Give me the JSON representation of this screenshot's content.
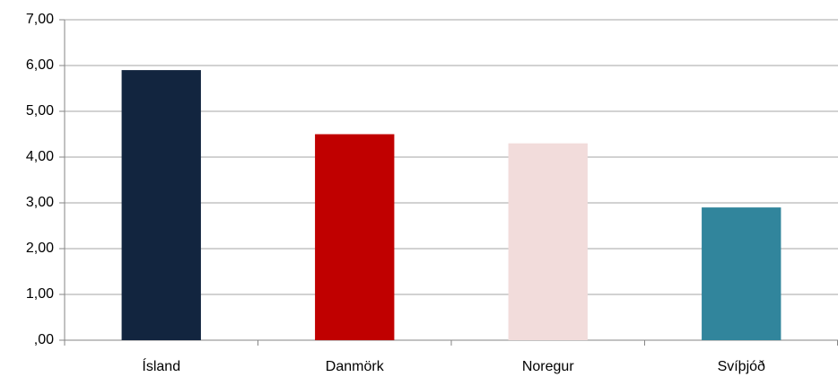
{
  "chart_data": {
    "type": "bar",
    "categories": [
      "Ísland",
      "Danmörk",
      "Noregur",
      "Svíþjóð"
    ],
    "values": [
      5.9,
      4.5,
      4.3,
      2.9
    ],
    "colors": [
      "#12253f",
      "#c00000",
      "#f2dcdb",
      "#31859c"
    ],
    "ylim": [
      0,
      7
    ],
    "yticks": [
      {
        "value": 0,
        "label": ",00"
      },
      {
        "value": 1,
        "label": "1,00"
      },
      {
        "value": 2,
        "label": "2,00"
      },
      {
        "value": 3,
        "label": "3,00"
      },
      {
        "value": 4,
        "label": "4,00"
      },
      {
        "value": 5,
        "label": "5,00"
      },
      {
        "value": 6,
        "label": "6,00"
      },
      {
        "value": 7,
        "label": "7,00"
      }
    ],
    "grid": true
  }
}
